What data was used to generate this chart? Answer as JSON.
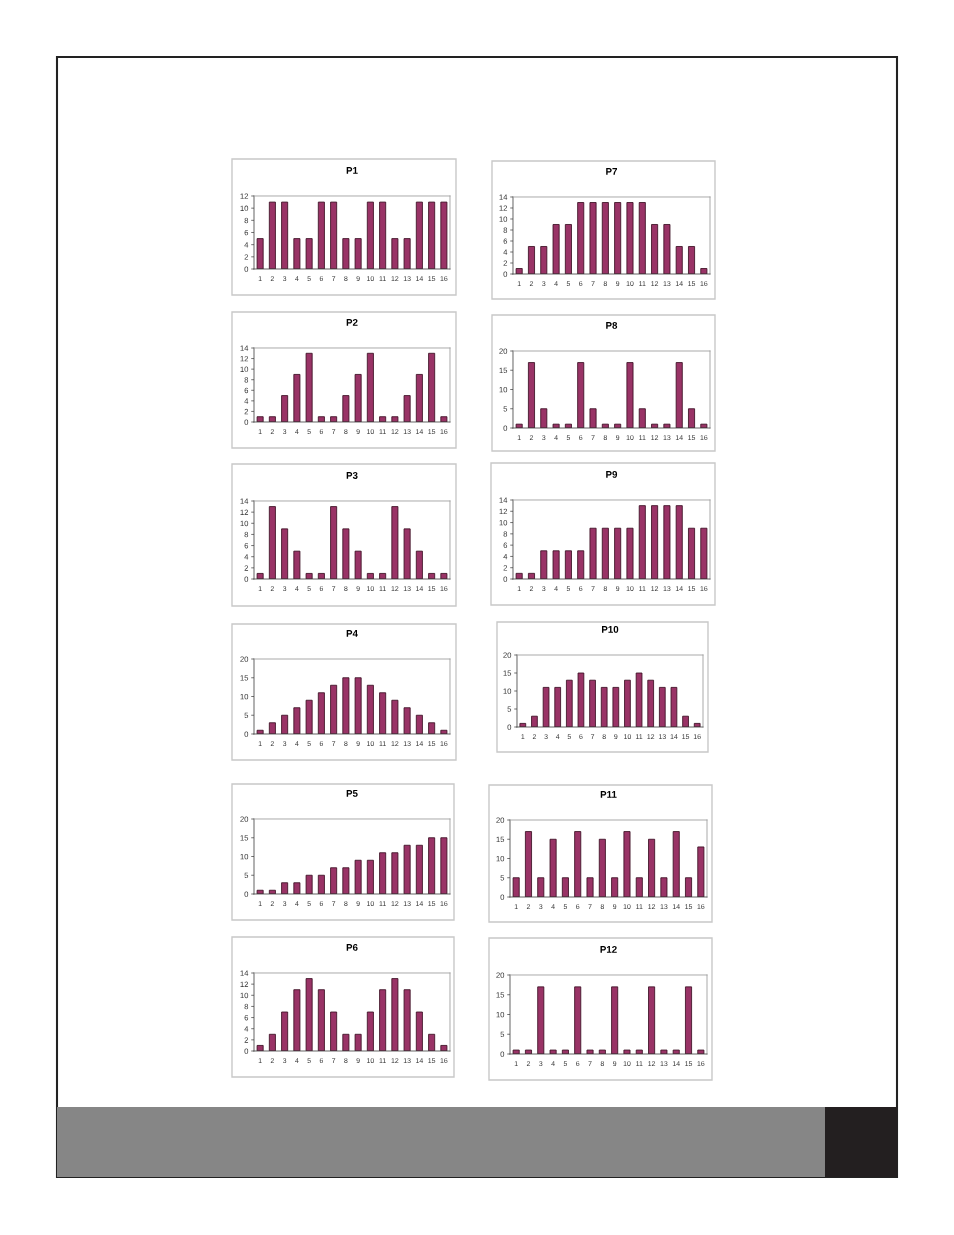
{
  "chart_data": [
    {
      "type": "bar",
      "title": "P1",
      "categories": [
        "1",
        "2",
        "3",
        "4",
        "5",
        "6",
        "7",
        "8",
        "9",
        "10",
        "11",
        "12",
        "13",
        "14",
        "15",
        "16"
      ],
      "values": [
        5,
        11,
        11,
        5,
        5,
        11,
        11,
        5,
        5,
        11,
        11,
        5,
        5,
        11,
        11,
        11
      ],
      "color": "#993366",
      "ylim": [
        0,
        12
      ],
      "yticks": [
        0,
        2,
        4,
        6,
        8,
        10,
        12
      ]
    },
    {
      "type": "bar",
      "title": "P2",
      "categories": [
        "1",
        "2",
        "3",
        "4",
        "5",
        "6",
        "7",
        "8",
        "9",
        "10",
        "11",
        "12",
        "13",
        "14",
        "15",
        "16"
      ],
      "values": [
        1,
        1,
        5,
        9,
        13,
        1,
        1,
        5,
        9,
        13,
        1,
        1,
        5,
        9,
        13,
        1
      ],
      "color": "#993366",
      "ylim": [
        0,
        14
      ],
      "yticks": [
        0,
        2,
        4,
        6,
        8,
        10,
        12,
        14
      ]
    },
    {
      "type": "bar",
      "title": "P3",
      "categories": [
        "1",
        "2",
        "3",
        "4",
        "5",
        "6",
        "7",
        "8",
        "9",
        "10",
        "11",
        "12",
        "13",
        "14",
        "15",
        "16"
      ],
      "values": [
        1,
        13,
        9,
        5,
        1,
        1,
        13,
        9,
        5,
        1,
        1,
        13,
        9,
        5,
        1,
        1
      ],
      "color": "#993366",
      "ylim": [
        0,
        14
      ],
      "yticks": [
        0,
        2,
        4,
        6,
        8,
        10,
        12,
        14
      ]
    },
    {
      "type": "bar",
      "title": "P4",
      "categories": [
        "1",
        "2",
        "3",
        "4",
        "5",
        "6",
        "7",
        "8",
        "9",
        "10",
        "11",
        "12",
        "13",
        "14",
        "15",
        "16"
      ],
      "values": [
        1,
        3,
        5,
        7,
        9,
        11,
        13,
        15,
        15,
        13,
        11,
        9,
        7,
        5,
        3,
        1
      ],
      "color": "#993366",
      "ylim": [
        0,
        20
      ],
      "yticks": [
        0,
        5,
        10,
        15,
        20
      ]
    },
    {
      "type": "bar",
      "title": "P5",
      "categories": [
        "1",
        "2",
        "3",
        "4",
        "5",
        "6",
        "7",
        "8",
        "9",
        "10",
        "11",
        "12",
        "13",
        "14",
        "15",
        "16"
      ],
      "values": [
        1,
        1,
        3,
        3,
        5,
        5,
        7,
        7,
        9,
        9,
        11,
        11,
        13,
        13,
        15,
        15
      ],
      "color": "#993366",
      "ylim": [
        0,
        20
      ],
      "yticks": [
        0,
        5,
        10,
        15,
        20
      ]
    },
    {
      "type": "bar",
      "title": "P6",
      "categories": [
        "1",
        "2",
        "3",
        "4",
        "5",
        "6",
        "7",
        "8",
        "9",
        "10",
        "11",
        "12",
        "13",
        "14",
        "15",
        "16"
      ],
      "values": [
        1,
        3,
        7,
        11,
        13,
        11,
        7,
        3,
        3,
        7,
        11,
        13,
        11,
        7,
        3,
        1
      ],
      "color": "#993366",
      "ylim": [
        0,
        14
      ],
      "yticks": [
        0,
        2,
        4,
        6,
        8,
        10,
        12,
        14
      ]
    },
    {
      "type": "bar",
      "title": "P7",
      "categories": [
        "1",
        "2",
        "3",
        "4",
        "5",
        "6",
        "7",
        "8",
        "9",
        "10",
        "11",
        "12",
        "13",
        "14",
        "15",
        "16"
      ],
      "values": [
        1,
        5,
        5,
        9,
        9,
        13,
        13,
        13,
        13,
        13,
        13,
        9,
        9,
        5,
        5,
        1
      ],
      "color": "#993366",
      "ylim": [
        0,
        14
      ],
      "yticks": [
        0,
        2,
        4,
        6,
        8,
        10,
        12,
        14
      ]
    },
    {
      "type": "bar",
      "title": "P8",
      "categories": [
        "1",
        "2",
        "3",
        "4",
        "5",
        "6",
        "7",
        "8",
        "9",
        "10",
        "11",
        "12",
        "13",
        "14",
        "15",
        "16"
      ],
      "values": [
        1,
        17,
        5,
        1,
        1,
        17,
        5,
        1,
        1,
        17,
        5,
        1,
        1,
        17,
        5,
        1
      ],
      "color": "#993366",
      "ylim": [
        0,
        20
      ],
      "yticks": [
        0,
        5,
        10,
        15,
        20
      ]
    },
    {
      "type": "bar",
      "title": "P9",
      "categories": [
        "1",
        "2",
        "3",
        "4",
        "5",
        "6",
        "7",
        "8",
        "9",
        "10",
        "11",
        "12",
        "13",
        "14",
        "15",
        "16"
      ],
      "values": [
        1,
        1,
        5,
        5,
        5,
        5,
        9,
        9,
        9,
        9,
        13,
        13,
        13,
        13,
        9,
        9
      ],
      "color": "#993366",
      "ylim": [
        0,
        14
      ],
      "yticks": [
        0,
        2,
        4,
        6,
        8,
        10,
        12,
        14
      ]
    },
    {
      "type": "bar",
      "title": "P10",
      "categories": [
        "1",
        "2",
        "3",
        "4",
        "5",
        "6",
        "7",
        "8",
        "9",
        "10",
        "11",
        "12",
        "13",
        "14",
        "15",
        "16"
      ],
      "values": [
        1,
        3,
        11,
        11,
        13,
        15,
        13,
        11,
        11,
        13,
        15,
        13,
        11,
        11,
        3,
        1
      ],
      "color": "#993366",
      "ylim": [
        0,
        20
      ],
      "yticks": [
        0,
        5,
        10,
        15,
        20
      ]
    },
    {
      "type": "bar",
      "title": "P11",
      "categories": [
        "1",
        "2",
        "3",
        "4",
        "5",
        "6",
        "7",
        "8",
        "9",
        "10",
        "11",
        "12",
        "13",
        "14",
        "15",
        "16"
      ],
      "values": [
        5,
        17,
        5,
        15,
        5,
        17,
        5,
        15,
        5,
        17,
        5,
        15,
        5,
        17,
        5,
        13
      ],
      "color": "#993366",
      "ylim": [
        0,
        20
      ],
      "yticks": [
        0,
        5,
        10,
        15,
        20
      ]
    },
    {
      "type": "bar",
      "title": "P12",
      "categories": [
        "1",
        "2",
        "3",
        "4",
        "5",
        "6",
        "7",
        "8",
        "9",
        "10",
        "11",
        "12",
        "13",
        "14",
        "15",
        "16"
      ],
      "values": [
        1,
        1,
        17,
        1,
        1,
        17,
        1,
        1,
        17,
        1,
        1,
        17,
        1,
        1,
        17,
        1
      ],
      "color": "#993366",
      "ylim": [
        0,
        20
      ],
      "yticks": [
        0,
        5,
        10,
        15,
        20
      ]
    }
  ]
}
